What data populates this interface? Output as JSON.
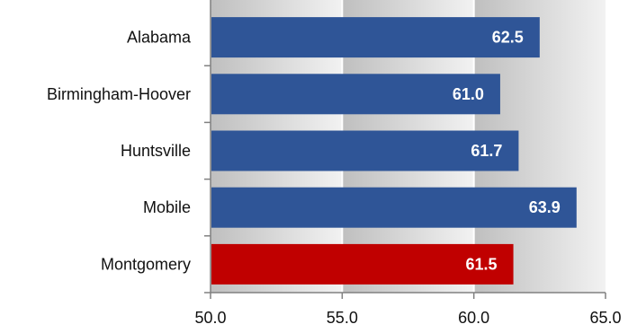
{
  "chart_data": {
    "type": "bar",
    "orientation": "horizontal",
    "categories": [
      "Alabama",
      "Birmingham-Hoover",
      "Huntsville",
      "Mobile",
      "Montgomery"
    ],
    "values": [
      62.5,
      61.0,
      61.7,
      63.9,
      61.5
    ],
    "value_labels": [
      "62.5",
      "61.0",
      "61.7",
      "63.9",
      "61.5"
    ],
    "highlight_category": "Montgomery",
    "xlim": [
      50.0,
      65.0
    ],
    "x_ticks": [
      50.0,
      55.0,
      60.0,
      65.0
    ],
    "x_tick_labels": [
      "50.0",
      "55.0",
      "60.0",
      "65.0"
    ],
    "grid": "vertical",
    "legend": "none",
    "title": "",
    "xlabel": "",
    "ylabel": ""
  },
  "colors": {
    "bar": "#2f5597",
    "highlight_bar": "#c00000",
    "axis": "#808080",
    "gridline": "#ffffff",
    "band_dark": "#bfbfbf",
    "band_light": "#f2f2f2",
    "value_text": "#ffffff"
  }
}
